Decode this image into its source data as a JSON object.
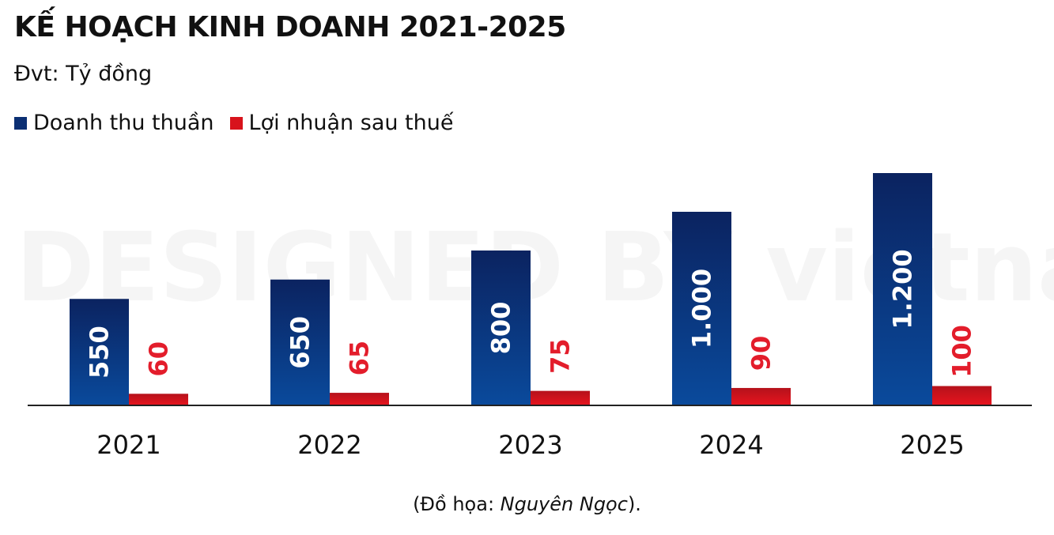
{
  "watermark": "DESIGNED BY vietnambiz",
  "footer": {
    "prefix": "(Đồ họa: ",
    "author": "Nguyên Ngọc",
    "suffix": ")."
  },
  "colors": {
    "revenue_top": "#0b2360",
    "revenue_bottom": "#0a4a9c",
    "profit_top": "#b5121b",
    "profit_bottom": "#e8141e",
    "profit_label": "#e31d2b",
    "revenue_label": "#ffffff",
    "axis": "#222222"
  },
  "chart_data": {
    "type": "bar",
    "title": "KẾ HOẠCH KINH DOANH 2021-2025",
    "subtitle": "Đvt: Tỷ đồng",
    "categories": [
      "2021",
      "2022",
      "2023",
      "2024",
      "2025"
    ],
    "series": [
      {
        "name": "Doanh thu thuần",
        "values": [
          550,
          650,
          800,
          1000,
          1200
        ],
        "labels": [
          "550",
          "650",
          "800",
          "1.000",
          "1.200"
        ]
      },
      {
        "name": "Lợi nhuận sau thuế",
        "values": [
          60,
          65,
          75,
          90,
          100
        ],
        "labels": [
          "60",
          "65",
          "75",
          "90",
          "100"
        ]
      }
    ],
    "ylim": [
      0,
      1200
    ],
    "grid": false,
    "legend": "top-left"
  }
}
